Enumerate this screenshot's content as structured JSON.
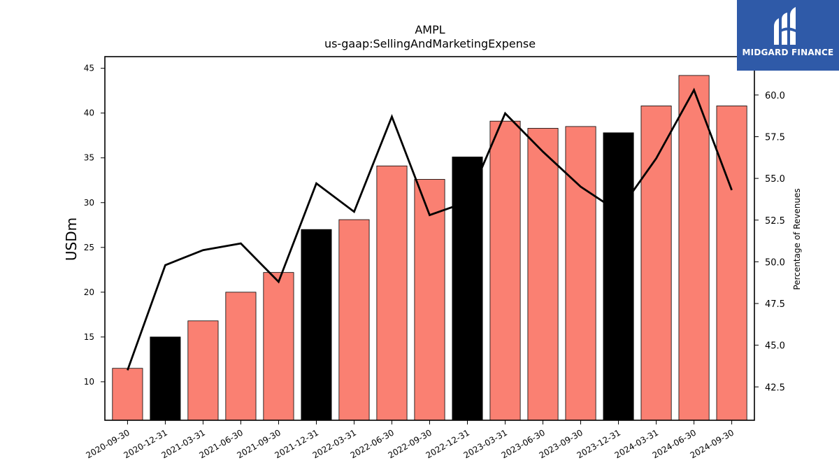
{
  "logo": {
    "text": "MIDGARD FINANCE",
    "icon": "midgard-finance-logo-icon",
    "color": "#2f5aa8"
  },
  "chart_data": {
    "type": "bar",
    "title": "AMPL",
    "subtitle": "us-gaap:SellingAndMarketingExpense",
    "ylabel": "USDm",
    "y2label": "Percentage of Revenues",
    "categories": [
      "2020-09-30",
      "2020-12-31",
      "2021-03-31",
      "2021-06-30",
      "2021-09-30",
      "2021-12-31",
      "2022-03-31",
      "2022-06-30",
      "2022-09-30",
      "2022-12-31",
      "2023-03-31",
      "2023-06-30",
      "2023-09-30",
      "2023-12-31",
      "2024-03-31",
      "2024-06-30",
      "2024-09-30"
    ],
    "series": [
      {
        "type": "bar",
        "axis": "left",
        "values": [
          11.5,
          15.0,
          16.8,
          20.0,
          22.2,
          27.0,
          28.1,
          34.1,
          32.6,
          35.1,
          39.1,
          38.3,
          38.5,
          37.8,
          40.8,
          44.2,
          40.8
        ]
      },
      {
        "type": "line",
        "axis": "right",
        "values": [
          43.5,
          49.8,
          50.7,
          51.1,
          48.8,
          54.7,
          53.0,
          58.7,
          52.8,
          53.6,
          58.9,
          56.6,
          54.5,
          53.0,
          56.2,
          60.3,
          54.3
        ]
      }
    ],
    "bar_colors": [
      "#fa8072",
      "#000000",
      "#fa8072",
      "#fa8072",
      "#fa8072",
      "#000000",
      "#fa8072",
      "#fa8072",
      "#fa8072",
      "#000000",
      "#fa8072",
      "#fa8072",
      "#fa8072",
      "#000000",
      "#fa8072",
      "#fa8072",
      "#fa8072"
    ],
    "line_color": "#000000",
    "ylim": [
      5.7,
      46.3
    ],
    "y2lim": [
      40.5,
      62.3
    ],
    "yticks": [
      10,
      15,
      20,
      25,
      30,
      35,
      40,
      45
    ],
    "y2ticks": [
      "42.5",
      "45.0",
      "47.5",
      "50.0",
      "52.5",
      "55.0",
      "57.5",
      "60.0"
    ],
    "grid": false,
    "legend": "none"
  }
}
